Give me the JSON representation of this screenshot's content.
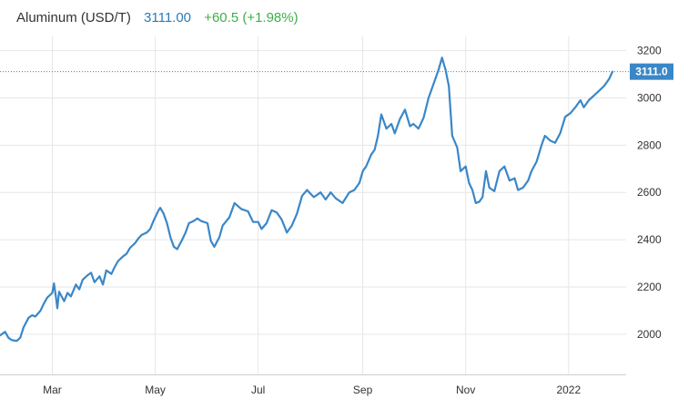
{
  "header": {
    "title": "Aluminum (USD/T)",
    "price": "3111.00",
    "change": "+60.5 (+1.98%)"
  },
  "price_tag": "3111.0",
  "colors": {
    "line": "#3a87c8",
    "grid": "#e6e6e6",
    "tag": "#3a87c8",
    "price_text": "#2b7bb9",
    "change_text": "#3fae49"
  },
  "chart_data": {
    "type": "line",
    "title": "Aluminum (USD/T)",
    "xlabel": "",
    "ylabel": "",
    "ylim": [
      1830,
      3260
    ],
    "yticks": [
      2000,
      2200,
      2400,
      2600,
      2800,
      3000,
      3200
    ],
    "xlim": [
      "2021-01-29",
      "2022-01-27"
    ],
    "xticks": [
      {
        "date": "2021-03-01",
        "label": "Mar"
      },
      {
        "date": "2021-05-01",
        "label": "May"
      },
      {
        "date": "2021-07-01",
        "label": "Jul"
      },
      {
        "date": "2021-09-01",
        "label": "Sep"
      },
      {
        "date": "2021-11-01",
        "label": "Nov"
      },
      {
        "date": "2022-01-01",
        "label": "2022"
      }
    ],
    "grid": true,
    "last_value": 3111.0,
    "series": [
      {
        "values": [
          [
            "2021-01-29",
            1995
          ],
          [
            "2021-02-01",
            2010
          ],
          [
            "2021-02-03",
            1985
          ],
          [
            "2021-02-05",
            1975
          ],
          [
            "2021-02-08",
            1972
          ],
          [
            "2021-02-10",
            1985
          ],
          [
            "2021-02-12",
            2030
          ],
          [
            "2021-02-15",
            2070
          ],
          [
            "2021-02-17",
            2080
          ],
          [
            "2021-02-19",
            2075
          ],
          [
            "2021-02-22",
            2100
          ],
          [
            "2021-02-24",
            2130
          ],
          [
            "2021-02-26",
            2155
          ],
          [
            "2021-03-01",
            2175
          ],
          [
            "2021-03-02",
            2215
          ],
          [
            "2021-03-03",
            2165
          ],
          [
            "2021-03-04",
            2110
          ],
          [
            "2021-03-05",
            2180
          ],
          [
            "2021-03-08",
            2140
          ],
          [
            "2021-03-10",
            2175
          ],
          [
            "2021-03-12",
            2160
          ],
          [
            "2021-03-15",
            2210
          ],
          [
            "2021-03-17",
            2190
          ],
          [
            "2021-03-19",
            2230
          ],
          [
            "2021-03-22",
            2250
          ],
          [
            "2021-03-24",
            2260
          ],
          [
            "2021-03-26",
            2220
          ],
          [
            "2021-03-29",
            2245
          ],
          [
            "2021-03-31",
            2210
          ],
          [
            "2021-04-02",
            2270
          ],
          [
            "2021-04-05",
            2255
          ],
          [
            "2021-04-07",
            2285
          ],
          [
            "2021-04-09",
            2310
          ],
          [
            "2021-04-12",
            2330
          ],
          [
            "2021-04-14",
            2340
          ],
          [
            "2021-04-16",
            2365
          ],
          [
            "2021-04-19",
            2385
          ],
          [
            "2021-04-21",
            2405
          ],
          [
            "2021-04-23",
            2420
          ],
          [
            "2021-04-26",
            2430
          ],
          [
            "2021-04-28",
            2445
          ],
          [
            "2021-04-30",
            2480
          ],
          [
            "2021-05-03",
            2525
          ],
          [
            "2021-05-04",
            2535
          ],
          [
            "2021-05-06",
            2510
          ],
          [
            "2021-05-08",
            2470
          ],
          [
            "2021-05-10",
            2410
          ],
          [
            "2021-05-12",
            2370
          ],
          [
            "2021-05-14",
            2360
          ],
          [
            "2021-05-17",
            2400
          ],
          [
            "2021-05-19",
            2430
          ],
          [
            "2021-05-21",
            2470
          ],
          [
            "2021-05-24",
            2480
          ],
          [
            "2021-05-26",
            2490
          ],
          [
            "2021-05-28",
            2480
          ],
          [
            "2021-06-01",
            2470
          ],
          [
            "2021-06-03",
            2395
          ],
          [
            "2021-06-05",
            2370
          ],
          [
            "2021-06-08",
            2410
          ],
          [
            "2021-06-10",
            2460
          ],
          [
            "2021-06-14",
            2495
          ],
          [
            "2021-06-17",
            2555
          ],
          [
            "2021-06-21",
            2530
          ],
          [
            "2021-06-25",
            2520
          ],
          [
            "2021-06-28",
            2475
          ],
          [
            "2021-07-01",
            2475
          ],
          [
            "2021-07-03",
            2445
          ],
          [
            "2021-07-06",
            2470
          ],
          [
            "2021-07-09",
            2525
          ],
          [
            "2021-07-12",
            2515
          ],
          [
            "2021-07-15",
            2485
          ],
          [
            "2021-07-18",
            2430
          ],
          [
            "2021-07-21",
            2460
          ],
          [
            "2021-07-24",
            2510
          ],
          [
            "2021-07-27",
            2585
          ],
          [
            "2021-07-30",
            2610
          ],
          [
            "2021-08-03",
            2580
          ],
          [
            "2021-08-07",
            2600
          ],
          [
            "2021-08-10",
            2570
          ],
          [
            "2021-08-13",
            2600
          ],
          [
            "2021-08-16",
            2575
          ],
          [
            "2021-08-20",
            2555
          ],
          [
            "2021-08-24",
            2600
          ],
          [
            "2021-08-27",
            2610
          ],
          [
            "2021-08-30",
            2640
          ],
          [
            "2021-09-01",
            2690
          ],
          [
            "2021-09-03",
            2710
          ],
          [
            "2021-09-06",
            2760
          ],
          [
            "2021-09-08",
            2780
          ],
          [
            "2021-09-10",
            2840
          ],
          [
            "2021-09-12",
            2930
          ],
          [
            "2021-09-15",
            2870
          ],
          [
            "2021-09-18",
            2890
          ],
          [
            "2021-09-20",
            2850
          ],
          [
            "2021-09-23",
            2910
          ],
          [
            "2021-09-26",
            2950
          ],
          [
            "2021-09-29",
            2880
          ],
          [
            "2021-10-01",
            2890
          ],
          [
            "2021-10-04",
            2870
          ],
          [
            "2021-10-07",
            2915
          ],
          [
            "2021-10-10",
            3000
          ],
          [
            "2021-10-13",
            3060
          ],
          [
            "2021-10-16",
            3120
          ],
          [
            "2021-10-18",
            3170
          ],
          [
            "2021-10-20",
            3120
          ],
          [
            "2021-10-22",
            3050
          ],
          [
            "2021-10-24",
            2840
          ],
          [
            "2021-10-27",
            2790
          ],
          [
            "2021-10-29",
            2690
          ],
          [
            "2021-11-01",
            2710
          ],
          [
            "2021-11-03",
            2640
          ],
          [
            "2021-11-05",
            2610
          ],
          [
            "2021-11-07",
            2555
          ],
          [
            "2021-11-09",
            2560
          ],
          [
            "2021-11-11",
            2580
          ],
          [
            "2021-11-13",
            2690
          ],
          [
            "2021-11-15",
            2620
          ],
          [
            "2021-11-18",
            2605
          ],
          [
            "2021-11-21",
            2690
          ],
          [
            "2021-11-24",
            2710
          ],
          [
            "2021-11-27",
            2650
          ],
          [
            "2021-11-30",
            2660
          ],
          [
            "2021-12-02",
            2610
          ],
          [
            "2021-12-05",
            2620
          ],
          [
            "2021-12-08",
            2650
          ],
          [
            "2021-12-10",
            2690
          ],
          [
            "2021-12-13",
            2730
          ],
          [
            "2021-12-16",
            2800
          ],
          [
            "2021-12-18",
            2840
          ],
          [
            "2021-12-21",
            2820
          ],
          [
            "2021-12-24",
            2810
          ],
          [
            "2021-12-27",
            2850
          ],
          [
            "2021-12-30",
            2920
          ],
          [
            "2022-01-02",
            2935
          ],
          [
            "2022-01-05",
            2960
          ],
          [
            "2022-01-08",
            2990
          ],
          [
            "2022-01-10",
            2960
          ],
          [
            "2022-01-13",
            2990
          ],
          [
            "2022-01-16",
            3010
          ],
          [
            "2022-01-19",
            3030
          ],
          [
            "2022-01-22",
            3050
          ],
          [
            "2022-01-25",
            3080
          ],
          [
            "2022-01-27",
            3111
          ]
        ]
      }
    ]
  }
}
